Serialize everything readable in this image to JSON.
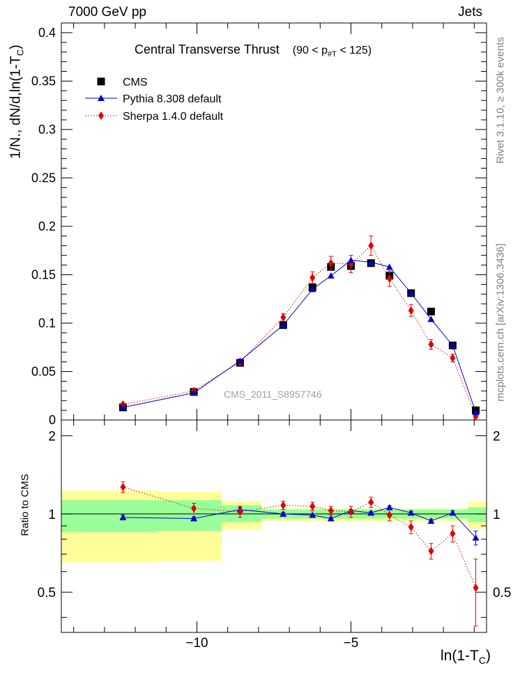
{
  "header": {
    "energy_label": "7000 GeV pp",
    "process_label": "Jets"
  },
  "side_labels": {
    "rivet": "Rivet 3.1.10, ≥ 300k events",
    "mcplots": "mcplots.cern.ch [arXiv:1306.3436]"
  },
  "colors": {
    "cms": "#000000",
    "pythia": "#0000cc",
    "sherpa": "#e00000",
    "band_inner": "#99ff99",
    "band_outer": "#ffff99"
  },
  "chart_data": [
    {
      "type": "line",
      "title": "Central Transverse Thrust",
      "title_range": {
        "prefix": "(90 < p",
        "sub": "#T",
        "suffix": " < 125)"
      },
      "ylabel": "1/N., dN/d.ln(1-T_C)",
      "ylabel_parts": {
        "main": "1/N., dN/d,ln(1-T",
        "sub": "C",
        "close": ")"
      },
      "xlabel_parts": {
        "main": "ln(1-T",
        "sub": "C",
        "close": ")"
      },
      "watermark": "CMS_2011_S8957746",
      "xlim": [
        -14.4,
        -0.6
      ],
      "ylim": [
        0,
        0.41
      ],
      "y_ticks": [
        0,
        0.05,
        0.1,
        0.15,
        0.2,
        0.25,
        0.3,
        0.35,
        0.4
      ],
      "y_tick_labels": [
        "0",
        "0.05",
        "0.1",
        "0.15",
        "0.2",
        "0.25",
        "0.3",
        "0.35",
        "0.4"
      ],
      "legend": [
        {
          "name": "CMS",
          "marker": "square"
        },
        {
          "name": "Pythia 8.308 default",
          "marker": "triangle"
        },
        {
          "name": "Sherpa 1.4.0 default",
          "marker": "diamond"
        }
      ],
      "series": [
        {
          "name": "CMS",
          "x": [
            -12.4,
            -10.1,
            -8.6,
            -7.2,
            -6.25,
            -5.65,
            -5.0,
            -4.35,
            -3.75,
            -3.05,
            -2.4,
            -1.7,
            -0.95
          ],
          "y": [
            0.013,
            0.029,
            0.059,
            0.098,
            0.137,
            0.158,
            0.159,
            0.162,
            0.149,
            0.131,
            0.112,
            0.077,
            0.01
          ]
        },
        {
          "name": "Pythia 8.308 default",
          "x": [
            -12.4,
            -10.1,
            -8.6,
            -7.2,
            -6.25,
            -5.65,
            -5.0,
            -4.35,
            -3.75,
            -3.05,
            -2.4,
            -1.7,
            -0.95
          ],
          "y": [
            0.013,
            0.028,
            0.061,
            0.098,
            0.135,
            0.149,
            0.165,
            0.163,
            0.158,
            0.131,
            0.104,
            0.077,
            0.008
          ]
        },
        {
          "name": "Sherpa 1.4.0 default",
          "x": [
            -12.4,
            -10.1,
            -8.6,
            -7.2,
            -6.25,
            -5.65,
            -5.0,
            -4.35,
            -3.75,
            -3.05,
            -2.4,
            -1.7,
            -0.95
          ],
          "y": [
            0.016,
            0.03,
            0.06,
            0.106,
            0.147,
            0.162,
            0.161,
            0.18,
            0.146,
            0.113,
            0.078,
            0.064,
            0.004
          ],
          "err": [
            0.002,
            0.002,
            0.003,
            0.004,
            0.006,
            0.007,
            0.009,
            0.01,
            0.008,
            0.006,
            0.005,
            0.004,
            0.002
          ]
        }
      ]
    },
    {
      "type": "line",
      "ylabel": "Ratio to CMS",
      "xlim": [
        -14.4,
        -0.6
      ],
      "ylim": [
        0.35,
        2.3
      ],
      "y_ticks": [
        0.5,
        1,
        2
      ],
      "y_tick_labels": [
        "0.5",
        "1",
        "2"
      ],
      "x_ticks": [
        -10,
        -5
      ],
      "x_tick_labels": [
        "−10",
        "−5"
      ],
      "bands": {
        "edges": [
          -14.4,
          -11.3,
          -9.2,
          -7.9,
          -1.2,
          -0.6
        ],
        "inner": [
          [
            0.85,
            1.13
          ],
          [
            0.86,
            1.13
          ],
          [
            0.93,
            1.08
          ],
          [
            0.96,
            1.04
          ],
          [
            0.93,
            1.06
          ]
        ],
        "outer": [
          [
            0.65,
            1.23
          ],
          [
            0.66,
            1.22
          ],
          [
            0.87,
            1.12
          ],
          [
            0.94,
            1.05
          ],
          [
            0.88,
            1.11
          ]
        ]
      },
      "series": [
        {
          "name": "Pythia 8.308 default",
          "x": [
            -12.4,
            -10.1,
            -8.6,
            -7.2,
            -6.25,
            -5.65,
            -5.0,
            -4.35,
            -3.75,
            -3.05,
            -2.4,
            -1.7,
            -0.95
          ],
          "y": [
            0.97,
            0.96,
            1.04,
            1.0,
            0.99,
            0.96,
            1.03,
            1.01,
            1.06,
            1.01,
            0.94,
            1.01,
            0.81
          ],
          "err": [
            0.02,
            0.015,
            0.02,
            0.015,
            0.01,
            0.01,
            0.01,
            0.01,
            0.015,
            0.015,
            0.015,
            0.02,
            0.05
          ]
        },
        {
          "name": "Sherpa 1.4.0 default",
          "x": [
            -12.4,
            -10.1,
            -8.6,
            -7.2,
            -6.25,
            -5.65,
            -5.0,
            -4.35,
            -3.75,
            -3.05,
            -2.4,
            -1.7,
            -0.95
          ],
          "y": [
            1.27,
            1.05,
            1.02,
            1.08,
            1.07,
            1.03,
            1.02,
            1.11,
            0.99,
            0.89,
            0.72,
            0.84,
            0.52
          ],
          "err": [
            0.06,
            0.05,
            0.05,
            0.04,
            0.04,
            0.04,
            0.05,
            0.05,
            0.05,
            0.05,
            0.05,
            0.06,
            0.15
          ]
        }
      ]
    }
  ]
}
